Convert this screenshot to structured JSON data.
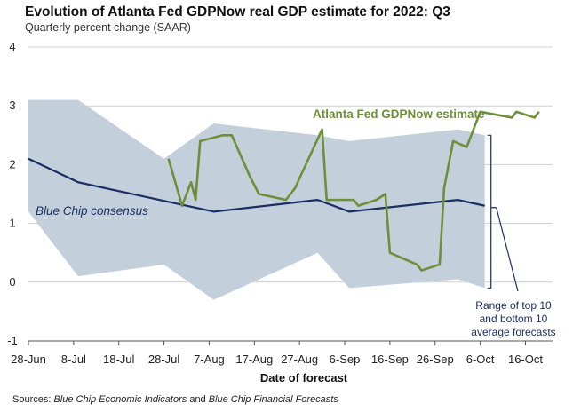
{
  "title": "Evolution of Atlanta Fed GDPNow real GDP estimate for 2022: Q3",
  "subtitle": "Quarterly percent change (SAAR)",
  "source": {
    "prefix": "Sources: ",
    "part1": "Blue Chip Economic Indicators",
    "middle": " and ",
    "part2": "Blue Chip Financial Forecasts"
  },
  "colors": {
    "gdpnow": "#6e8f3a",
    "bluechip": "#1b2f63",
    "range": "#c3d0dc",
    "grid": "#cfcfcf",
    "axis": "#555555"
  },
  "chart_data": {
    "type": "line",
    "title": "Evolution of Atlanta Fed GDPNow real GDP estimate for 2022: Q3",
    "subtitle": "Quarterly percent change (SAAR)",
    "xlabel": "Date of forecast",
    "ylabel": "",
    "xlim": [
      "2022-06-28",
      "2022-10-22"
    ],
    "ylim": [
      -1,
      4
    ],
    "yticks": [
      -1,
      0,
      1,
      2,
      3,
      4
    ],
    "xticks": [
      "28-Jun",
      "8-Jul",
      "18-Jul",
      "28-Jul",
      "7-Aug",
      "17-Aug",
      "27-Aug",
      "6-Sep",
      "16-Sep",
      "26-Sep",
      "6-Oct",
      "16-Oct"
    ],
    "grid": "horizontal",
    "annotations": {
      "gdpnow_label": "Atlanta Fed GDPNow estimate",
      "bluechip_label": "Blue Chip consensus",
      "range_label": [
        "Range of top 10",
        "and bottom 10",
        "average forecasts"
      ]
    },
    "series": [
      {
        "name": "Atlanta Fed GDPNow estimate",
        "x": [
          "2022-07-29",
          "2022-08-01",
          "2022-08-03",
          "2022-08-04",
          "2022-08-05",
          "2022-08-10",
          "2022-08-12",
          "2022-08-16",
          "2022-08-18",
          "2022-08-24",
          "2022-08-26",
          "2022-09-01",
          "2022-09-02",
          "2022-09-08",
          "2022-09-09",
          "2022-09-13",
          "2022-09-15",
          "2022-09-16",
          "2022-09-19",
          "2022-09-22",
          "2022-09-23",
          "2022-09-27",
          "2022-09-28",
          "2022-09-30",
          "2022-10-03",
          "2022-10-05",
          "2022-10-06",
          "2022-10-13",
          "2022-10-14",
          "2022-10-18",
          "2022-10-19"
        ],
        "values": [
          2.1,
          1.3,
          1.7,
          1.4,
          2.4,
          2.5,
          2.5,
          1.8,
          1.5,
          1.4,
          1.6,
          2.6,
          1.4,
          1.4,
          1.3,
          1.4,
          1.5,
          0.5,
          0.4,
          0.3,
          0.2,
          0.3,
          1.6,
          2.4,
          2.3,
          2.7,
          2.9,
          2.8,
          2.9,
          2.8,
          2.9
        ]
      },
      {
        "name": "Blue Chip consensus",
        "x": [
          "2022-06-28",
          "2022-07-09",
          "2022-08-08",
          "2022-08-31",
          "2022-09-07",
          "2022-10-01",
          "2022-10-07"
        ],
        "values": [
          2.1,
          1.7,
          1.2,
          1.4,
          1.2,
          1.4,
          1.3
        ]
      },
      {
        "name": "Range of top 10 and bottom 10 average forecasts",
        "x": [
          "2022-06-28",
          "2022-07-09",
          "2022-07-28",
          "2022-08-08",
          "2022-08-31",
          "2022-09-07",
          "2022-10-01",
          "2022-10-07"
        ],
        "upper": [
          3.1,
          3.1,
          2.1,
          2.7,
          2.5,
          2.4,
          2.6,
          2.5
        ],
        "lower": [
          1.2,
          0.1,
          0.3,
          -0.3,
          0.5,
          -0.1,
          0.05,
          -0.1
        ]
      }
    ]
  }
}
